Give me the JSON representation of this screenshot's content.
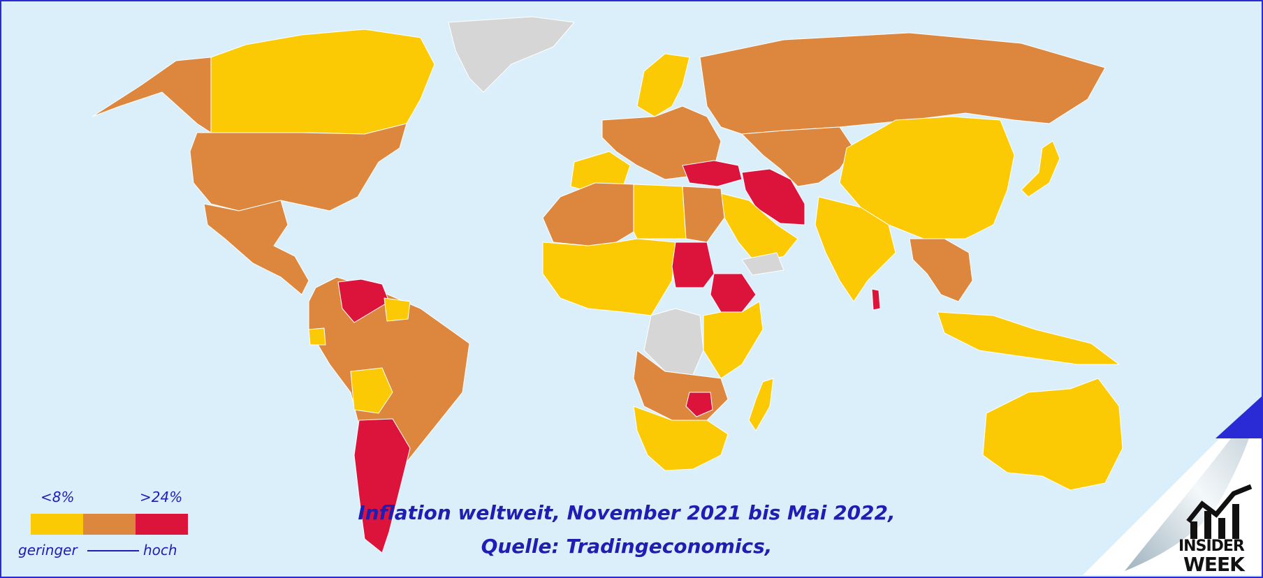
{
  "colors": {
    "ocean": "#dbeffa",
    "low": "#fbca04",
    "medium": "#dc873d",
    "high": "#dc143c",
    "no_data": "#d6d6d6",
    "text": "#1e1eb4"
  },
  "legend": {
    "min_label": "<8%",
    "max_label": ">24%",
    "left_label": "geringer",
    "right_label": "hoch",
    "categories": [
      "low",
      "medium",
      "high"
    ]
  },
  "caption": {
    "line1": "Inflation weltweit, November 2021 bis Mai 2022,",
    "line2": "Quelle: Tradingeconomics,"
  },
  "logo": {
    "line1": "INSIDER",
    "line2": "WEEK"
  },
  "map_regions": [
    {
      "name": "canada",
      "category": "low"
    },
    {
      "name": "alaska",
      "category": "medium"
    },
    {
      "name": "usa",
      "category": "medium"
    },
    {
      "name": "greenland",
      "category": "no_data"
    },
    {
      "name": "mexico-central-america",
      "category": "medium"
    },
    {
      "name": "venezuela",
      "category": "high"
    },
    {
      "name": "guyana-suriname",
      "category": "low"
    },
    {
      "name": "ecuador",
      "category": "low"
    },
    {
      "name": "brazil-andes",
      "category": "medium"
    },
    {
      "name": "bolivia",
      "category": "low"
    },
    {
      "name": "argentina",
      "category": "high"
    },
    {
      "name": "russia",
      "category": "medium"
    },
    {
      "name": "scandinavia",
      "category": "low"
    },
    {
      "name": "europe",
      "category": "medium"
    },
    {
      "name": "iberia-france",
      "category": "low"
    },
    {
      "name": "turkey",
      "category": "high"
    },
    {
      "name": "iran",
      "category": "high"
    },
    {
      "name": "arabia",
      "category": "low"
    },
    {
      "name": "yemen",
      "category": "no_data"
    },
    {
      "name": "central-asia",
      "category": "medium"
    },
    {
      "name": "china",
      "category": "low"
    },
    {
      "name": "india",
      "category": "low"
    },
    {
      "name": "sri-lanka",
      "category": "high"
    },
    {
      "name": "southeast-asia",
      "category": "medium"
    },
    {
      "name": "japan",
      "category": "low"
    },
    {
      "name": "indonesia",
      "category": "low"
    },
    {
      "name": "australia",
      "category": "low"
    },
    {
      "name": "north-africa",
      "category": "medium"
    },
    {
      "name": "libya",
      "category": "low"
    },
    {
      "name": "egypt",
      "category": "medium"
    },
    {
      "name": "west-africa",
      "category": "low"
    },
    {
      "name": "sudan",
      "category": "high"
    },
    {
      "name": "ethiopia",
      "category": "high"
    },
    {
      "name": "dr-congo",
      "category": "no_data"
    },
    {
      "name": "east-africa",
      "category": "low"
    },
    {
      "name": "angola-zambia",
      "category": "medium"
    },
    {
      "name": "zimbabwe",
      "category": "high"
    },
    {
      "name": "southern-africa",
      "category": "low"
    },
    {
      "name": "madagascar",
      "category": "low"
    }
  ]
}
